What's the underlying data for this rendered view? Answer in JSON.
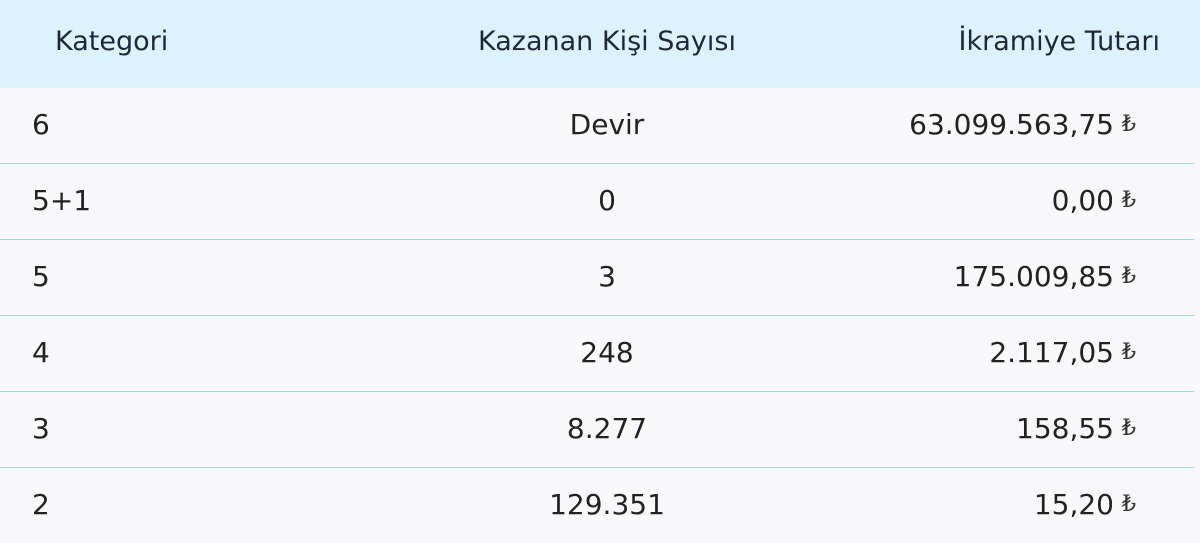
{
  "header": {
    "category": "Kategori",
    "winners": "Kazanan Kişi Sayısı",
    "prize": "İkramiye Tutarı"
  },
  "currency_symbol": "₺",
  "rows": [
    {
      "category": "6",
      "winners": "Devir",
      "prize": "63.099.563,75"
    },
    {
      "category": "5+1",
      "winners": "0",
      "prize": "0,00"
    },
    {
      "category": "5",
      "winners": "3",
      "prize": "175.009,85"
    },
    {
      "category": "4",
      "winners": "248",
      "prize": "2.117,05"
    },
    {
      "category": "3",
      "winners": "8.277",
      "prize": "158,55"
    },
    {
      "category": "2",
      "winners": "129.351",
      "prize": "15,20"
    }
  ],
  "colors": {
    "header_bg": "#dcf3fd",
    "row_bg": "#f9f9fb",
    "divider": "#a9d5e6"
  }
}
